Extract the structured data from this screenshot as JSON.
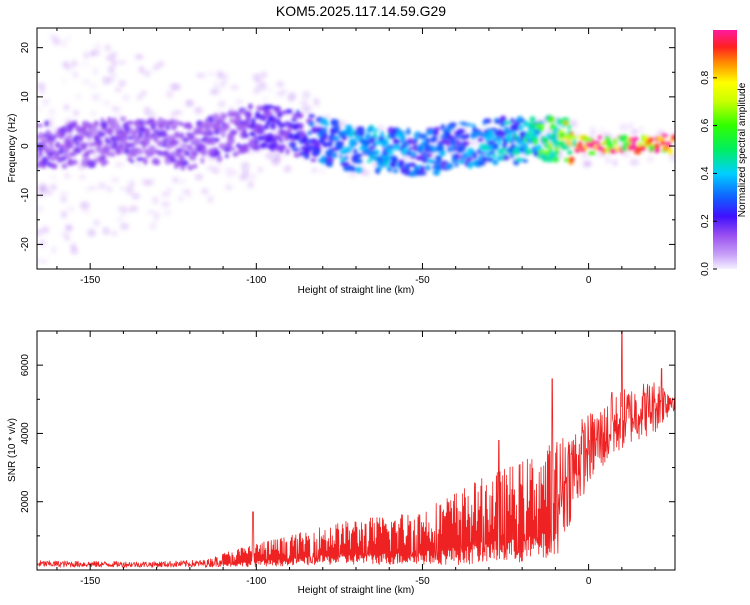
{
  "page_title": "KOM5.2025.117.14.59.G29",
  "colors": {
    "snr_line": "#ee2222",
    "spectrogram_blob": "#7a18e6",
    "axis": "#000000"
  },
  "chart_data": [
    {
      "type": "heatmap",
      "title": "KOM5.2025.117.14.59.G29",
      "xlabel": "Height of straight line (km)",
      "ylabel": "Frequency (Hz)",
      "xlim": [
        -166,
        26
      ],
      "ylim": [
        -25,
        24
      ],
      "xticks": [
        -150,
        -100,
        -50,
        0
      ],
      "yticks": [
        -20,
        -10,
        0,
        10,
        20
      ],
      "grid": false,
      "ridge": {
        "description_units": "x in km, frequency in Hz",
        "x": [
          -166,
          -150,
          -140,
          -130,
          -120,
          -110,
          -100,
          -90,
          -80,
          -70,
          -60,
          -50,
          -40,
          -30,
          -20,
          -12,
          -5,
          0,
          10,
          20,
          26
        ],
        "freq": [
          0,
          0.5,
          1.5,
          1,
          0,
          2,
          4,
          3,
          1,
          -0.5,
          -1,
          -1.5,
          0,
          1,
          1,
          1.5,
          1,
          0,
          0.5,
          0.5,
          0.5
        ],
        "amplitude": [
          0.15,
          0.15,
          0.15,
          0.15,
          0.15,
          0.15,
          0.18,
          0.2,
          0.3,
          0.35,
          0.35,
          0.3,
          0.3,
          0.35,
          0.4,
          0.55,
          0.75,
          0.9,
          0.9,
          0.9,
          0.9
        ]
      },
      "colorbar": {
        "label": "Normalized spectral amplitude",
        "range": [
          0,
          1
        ],
        "ticks": [
          0.0,
          0.2,
          0.4,
          0.6,
          0.8
        ],
        "tick_labels": [
          "0.0",
          "0.2",
          "0.4",
          "0.6",
          "0.8"
        ]
      }
    },
    {
      "type": "line",
      "xlabel": "Height of straight line (km)",
      "ylabel": "SNR (10 * v/v)",
      "xlim": [
        -166,
        26
      ],
      "ylim": [
        0,
        7000
      ],
      "xticks": [
        -150,
        -100,
        -50,
        0
      ],
      "yticks": [
        2000,
        4000,
        6000
      ],
      "grid": false,
      "series": [
        {
          "envelope_x": [
            -166,
            -150,
            -130,
            -115,
            -110,
            -100,
            -90,
            -80,
            -70,
            -60,
            -50,
            -40,
            -30,
            -20,
            -10,
            -5,
            0,
            5,
            10,
            15,
            20,
            26
          ],
          "envelope_low": [
            80,
            80,
            80,
            80,
            100,
            100,
            120,
            150,
            150,
            150,
            150,
            150,
            200,
            200,
            300,
            1500,
            2500,
            3000,
            3500,
            3800,
            4000,
            4700
          ],
          "envelope_high": [
            280,
            260,
            250,
            300,
            500,
            800,
            1000,
            1300,
            1500,
            1600,
            1800,
            2300,
            2800,
            3200,
            3800,
            4300,
            4600,
            4900,
            5300,
            5500,
            5600,
            5400
          ],
          "peaks": [
            {
              "x": -101,
              "y": 1700
            },
            {
              "x": -27,
              "y": 3800
            },
            {
              "x": -11,
              "y": 5600
            },
            {
              "x": 7,
              "y": 5200
            },
            {
              "x": 10,
              "y": 7000
            },
            {
              "x": 22,
              "y": 5900
            }
          ]
        }
      ]
    }
  ]
}
